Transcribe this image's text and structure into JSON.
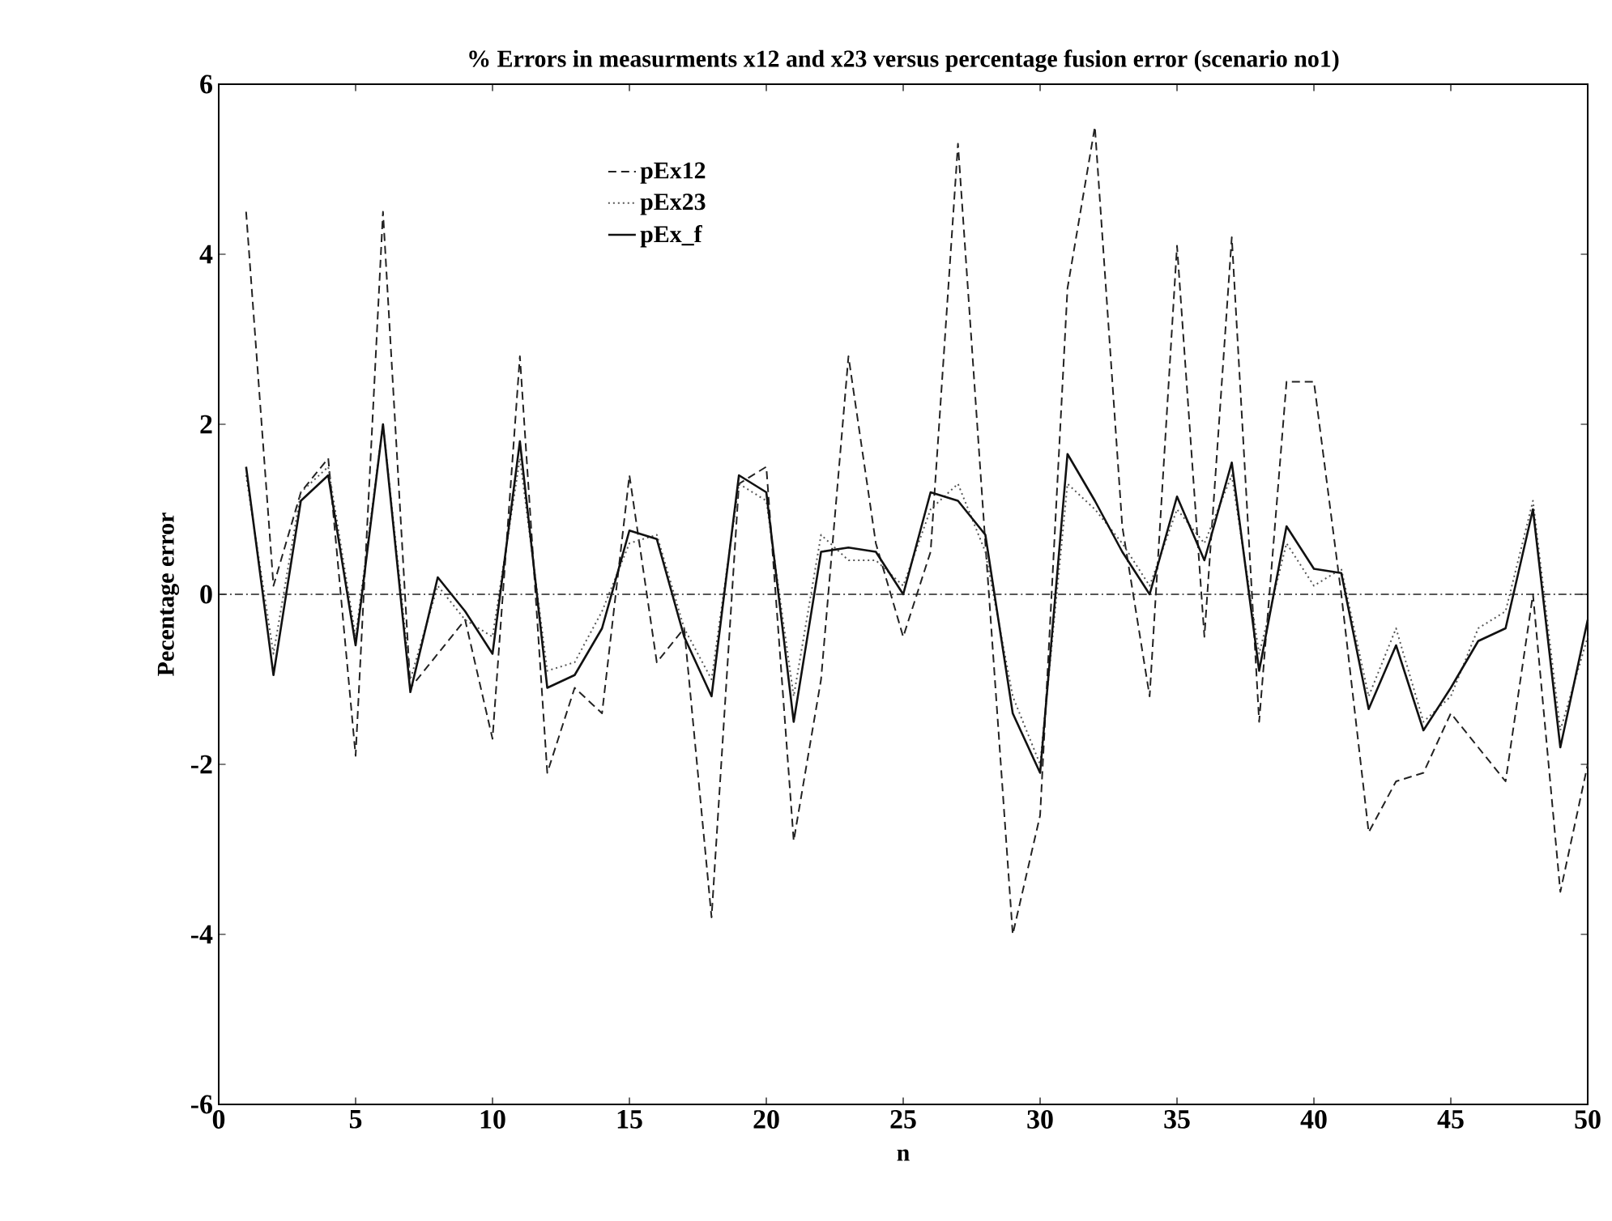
{
  "chart_data": {
    "type": "line",
    "title": "% Errors in measurments x12 and x23 versus percentage fusion error (scenario no1)",
    "xlabel": "n",
    "ylabel": "Pecentage error",
    "x": [
      1,
      2,
      3,
      4,
      5,
      6,
      7,
      8,
      9,
      10,
      11,
      12,
      13,
      14,
      15,
      16,
      17,
      18,
      19,
      20,
      21,
      22,
      23,
      24,
      25,
      26,
      27,
      28,
      29,
      30,
      31,
      32,
      33,
      34,
      35,
      36,
      37,
      38,
      39,
      40,
      41,
      42,
      43,
      44,
      45,
      46,
      47,
      48,
      49,
      50
    ],
    "series": [
      {
        "name": "pEx12",
        "color": "#222222",
        "line_style": "dashed",
        "values": [
          4.5,
          0.1,
          1.2,
          1.6,
          -1.9,
          4.5,
          -1.1,
          -0.7,
          -0.3,
          -1.7,
          2.8,
          -2.1,
          -1.1,
          -1.4,
          1.4,
          -0.8,
          -0.4,
          -3.8,
          1.3,
          1.5,
          -2.9,
          -1.0,
          2.8,
          0.6,
          -0.5,
          0.5,
          5.3,
          0.6,
          -4.0,
          -2.6,
          3.6,
          5.5,
          0.8,
          -1.2,
          4.1,
          -0.5,
          4.2,
          -1.5,
          2.5,
          2.5,
          0.0,
          -2.8,
          -2.2,
          -2.1,
          -1.4,
          -1.8,
          -2.2,
          0.0,
          -3.5,
          -2.0
        ]
      },
      {
        "name": "pEx23",
        "color": "#555555",
        "line_style": "dotted",
        "values": [
          1.4,
          -0.7,
          1.2,
          1.5,
          -0.5,
          2.0,
          -1.0,
          0.1,
          -0.3,
          -0.5,
          1.6,
          -0.9,
          -0.8,
          -0.2,
          0.6,
          0.7,
          -0.4,
          -1.0,
          1.3,
          1.1,
          -1.2,
          0.7,
          0.4,
          0.4,
          0.1,
          1.0,
          1.3,
          0.5,
          -1.2,
          -2.0,
          1.3,
          1.0,
          0.6,
          0.1,
          1.0,
          0.6,
          1.4,
          -0.7,
          0.6,
          0.1,
          0.3,
          -1.2,
          -0.4,
          -1.5,
          -1.2,
          -0.4,
          -0.2,
          1.1,
          -1.6,
          -0.5
        ]
      },
      {
        "name": "pEx_f",
        "color": "#111111",
        "line_style": "solid",
        "values": [
          1.5,
          -0.95,
          1.1,
          1.4,
          -0.6,
          2.0,
          -1.15,
          0.2,
          -0.2,
          -0.7,
          1.8,
          -1.1,
          -0.95,
          -0.4,
          0.75,
          0.65,
          -0.5,
          -1.2,
          1.4,
          1.2,
          -1.5,
          0.5,
          0.55,
          0.5,
          0.0,
          1.2,
          1.1,
          0.7,
          -1.4,
          -2.1,
          1.65,
          1.1,
          0.5,
          0.0,
          1.15,
          0.4,
          1.55,
          -0.9,
          0.8,
          0.3,
          0.25,
          -1.35,
          -0.6,
          -1.6,
          -1.1,
          -0.55,
          -0.4,
          1.0,
          -1.8,
          -0.3
        ]
      }
    ],
    "ref_lines": [
      {
        "axis": "y",
        "value": 0,
        "line_style": "dashdotted",
        "color": "#222222"
      }
    ],
    "xlim": [
      0,
      50
    ],
    "xticks": [
      0,
      5,
      10,
      15,
      20,
      25,
      30,
      35,
      40,
      45,
      50
    ],
    "ylim": [
      -6,
      6
    ],
    "yticks": [
      -6,
      -4,
      -2,
      0,
      2,
      4,
      6
    ],
    "legend": "top",
    "grid": false
  }
}
